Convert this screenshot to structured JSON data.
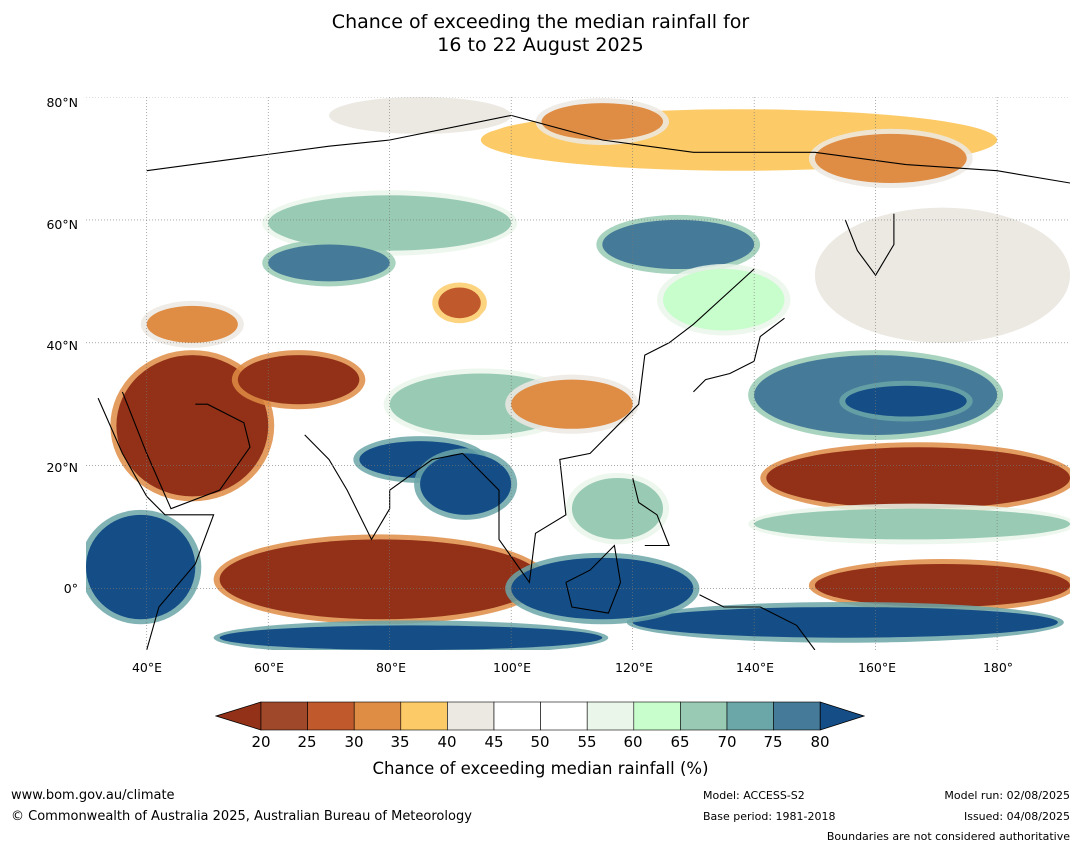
{
  "title": {
    "line1": "Chance of exceeding the median rainfall for",
    "line2": "16 to 22 August 2025"
  },
  "map": {
    "lat_labels": [
      "80°N",
      "60°N",
      "40°N",
      "20°N",
      "0°"
    ],
    "lon_labels": [
      "40°E",
      "60°E",
      "80°E",
      "100°E",
      "120°E",
      "140°E",
      "160°E",
      "180°"
    ],
    "lat_range": [
      -10,
      80
    ],
    "lon_range": [
      30,
      192
    ],
    "regions": [
      {
        "name": "arctic-coast-dry",
        "lon": [
          95,
          180
        ],
        "lat": [
          68,
          78
        ],
        "pct": 35
      },
      {
        "name": "arctic-dry-west",
        "lon": [
          105,
          125
        ],
        "lat": [
          73,
          79
        ],
        "pct": 30
      },
      {
        "name": "siberia-dry-east",
        "lon": [
          150,
          175
        ],
        "lat": [
          66,
          74
        ],
        "pct": 30
      },
      {
        "name": "arctic-near",
        "lon": [
          70,
          100
        ],
        "lat": [
          74,
          80
        ],
        "pct": 40
      },
      {
        "name": "west-siberia-wet",
        "lon": [
          60,
          100
        ],
        "lat": [
          55,
          64
        ],
        "pct": 65
      },
      {
        "name": "kazakh-wet",
        "lon": [
          60,
          80
        ],
        "lat": [
          50,
          56
        ],
        "pct": 75
      },
      {
        "name": "mongolia-wet",
        "lon": [
          115,
          140
        ],
        "lat": [
          52,
          60
        ],
        "pct": 75
      },
      {
        "name": "far-east-wet",
        "lon": [
          125,
          145
        ],
        "lat": [
          42,
          52
        ],
        "pct": 60
      },
      {
        "name": "kamchatka-neutral",
        "lon": [
          150,
          192
        ],
        "lat": [
          40,
          62
        ],
        "pct": 40
      },
      {
        "name": "pacific-wet-north",
        "lon": [
          140,
          180
        ],
        "lat": [
          25,
          38
        ],
        "pct": 75
      },
      {
        "name": "pacific-very-wet",
        "lon": [
          155,
          175
        ],
        "lat": [
          28,
          33
        ],
        "pct": 80
      },
      {
        "name": "pacific-dry-band",
        "lon": [
          142,
          192
        ],
        "lat": [
          13,
          23
        ],
        "pct": 20
      },
      {
        "name": "pacific-wet-band",
        "lon": [
          140,
          192
        ],
        "lat": [
          8,
          13
        ],
        "pct": 65
      },
      {
        "name": "equator-dry-east",
        "lon": [
          150,
          192
        ],
        "lat": [
          -3,
          4
        ],
        "pct": 20
      },
      {
        "name": "east-equator-wet",
        "lon": [
          120,
          190
        ],
        "lat": [
          -8,
          -3
        ],
        "pct": 80
      },
      {
        "name": "arabia-dry",
        "lon": [
          35,
          60
        ],
        "lat": [
          15,
          38
        ],
        "pct": 20
      },
      {
        "name": "iran-dry",
        "lon": [
          55,
          75
        ],
        "lat": [
          30,
          38
        ],
        "pct": 20
      },
      {
        "name": "tibet-wet",
        "lon": [
          80,
          110
        ],
        "lat": [
          25,
          35
        ],
        "pct": 65
      },
      {
        "name": "india-wet",
        "lon": [
          75,
          95
        ],
        "lat": [
          18,
          24
        ],
        "pct": 80
      },
      {
        "name": "bay-bengal-wet",
        "lon": [
          85,
          100
        ],
        "lat": [
          12,
          22
        ],
        "pct": 80
      },
      {
        "name": "east-africa-wet",
        "lon": [
          30,
          48
        ],
        "lat": [
          -5,
          12
        ],
        "pct": 80
      },
      {
        "name": "indian-ocean-dry",
        "lon": [
          52,
          105
        ],
        "lat": [
          -5,
          8
        ],
        "pct": 20
      },
      {
        "name": "indian-ocean-wet",
        "lon": [
          52,
          115
        ],
        "lat": [
          -10,
          -6
        ],
        "pct": 80
      },
      {
        "name": "maritime-wet",
        "lon": [
          100,
          130
        ],
        "lat": [
          -5,
          5
        ],
        "pct": 80
      },
      {
        "name": "china-dry-patch",
        "lon": [
          100,
          120
        ],
        "lat": [
          26,
          34
        ],
        "pct": 30
      },
      {
        "name": "scs-wet",
        "lon": [
          110,
          125
        ],
        "lat": [
          8,
          18
        ],
        "pct": 65
      },
      {
        "name": "caspian-dry",
        "lon": [
          40,
          55
        ],
        "lat": [
          40,
          46
        ],
        "pct": 30
      },
      {
        "name": "mongolia-dry",
        "lon": [
          88,
          95
        ],
        "lat": [
          44,
          49
        ],
        "pct": 25
      },
      {
        "name": "china-interior-neutral",
        "lon": [
          95,
          120
        ],
        "lat": [
          36,
          48
        ],
        "pct": 45
      }
    ]
  },
  "colorbar": {
    "ticks": [
      "20",
      "25",
      "30",
      "35",
      "40",
      "45",
      "50",
      "55",
      "60",
      "65",
      "70",
      "75",
      "80"
    ],
    "colors": [
      "#a0492a",
      "#c05a2c",
      "#df8c44",
      "#fccb68",
      "#ece9e3",
      "#ffffff",
      "#ffffff",
      "#eaf6ea",
      "#c8fdcc",
      "#99cbb4",
      "#6ba6a8",
      "#457a98"
    ],
    "under_color": "#923118",
    "over_color": "#154e87",
    "label": "Chance of exceeding median rainfall (%)"
  },
  "footer": {
    "website": "www.bom.gov.au/climate",
    "copyright": "© Commonwealth of Australia 2025, Australian Bureau of Meteorology",
    "model": "Model: ACCESS-S2",
    "base_period": "Base period: 1981-2018",
    "model_run": "Model run: 02/08/2025",
    "issued": "Issued: 04/08/2025",
    "boundaries": "Boundaries are not considered authoritative"
  }
}
